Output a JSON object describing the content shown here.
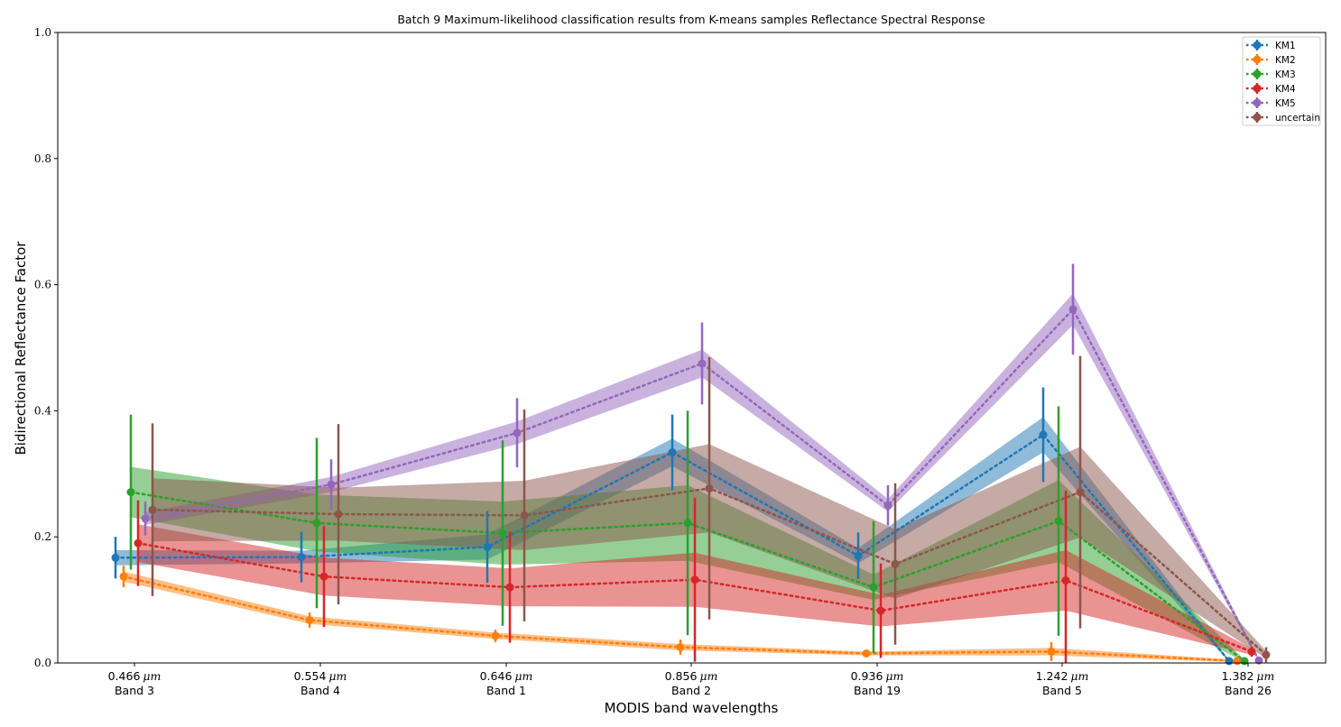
{
  "chart_data": {
    "type": "line",
    "title": "Batch 9 Maximum-likelihood classification results from K-means samples Reflectance Spectral Response",
    "xlabel": "MODIS band wavelengths",
    "ylabel": "Bidirectional Reflectance Factor",
    "ylim": [
      0,
      1.0
    ],
    "yticks": [
      "0.0",
      "0.2",
      "0.4",
      "0.6",
      "0.8",
      "1.0"
    ],
    "categories": [
      {
        "wavelength": "0.466",
        "unit": "μm",
        "band": "Band 3"
      },
      {
        "wavelength": "0.554",
        "unit": "μm",
        "band": "Band 4"
      },
      {
        "wavelength": "0.646",
        "unit": "μm",
        "band": "Band 1"
      },
      {
        "wavelength": "0.856",
        "unit": "μm",
        "band": "Band 2"
      },
      {
        "wavelength": "0.936",
        "unit": "μm",
        "band": "Band 19"
      },
      {
        "wavelength": "1.242",
        "unit": "μm",
        "band": "Band 5"
      },
      {
        "wavelength": "1.382",
        "unit": "μm",
        "band": "Band 26"
      }
    ],
    "grid": false,
    "legend_position": "top-right",
    "series": [
      {
        "name": "KM1",
        "color": "#1f77b4",
        "values": [
          0.167,
          0.168,
          0.184,
          0.334,
          0.17,
          0.362,
          0.003
        ],
        "err": [
          0.033,
          0.04,
          0.057,
          0.06,
          0.037,
          0.075,
          0.002
        ],
        "band_half": [
          0.012,
          0.01,
          0.02,
          0.022,
          0.012,
          0.028,
          0.002
        ]
      },
      {
        "name": "KM2",
        "color": "#ff7f0e",
        "values": [
          0.137,
          0.068,
          0.043,
          0.025,
          0.015,
          0.018,
          0.003
        ],
        "err": [
          0.017,
          0.012,
          0.01,
          0.012,
          0.005,
          0.015,
          0.002
        ],
        "band_half": [
          0.008,
          0.006,
          0.005,
          0.005,
          0.003,
          0.006,
          0.002
        ]
      },
      {
        "name": "KM3",
        "color": "#2ca02c",
        "values": [
          0.271,
          0.222,
          0.206,
          0.222,
          0.12,
          0.225,
          0.003
        ],
        "err": [
          0.123,
          0.135,
          0.147,
          0.178,
          0.105,
          0.182,
          0.002
        ],
        "band_half": [
          0.04,
          0.045,
          0.05,
          0.06,
          0.02,
          0.065,
          0.002
        ]
      },
      {
        "name": "KM4",
        "color": "#d62728",
        "values": [
          0.19,
          0.137,
          0.12,
          0.132,
          0.083,
          0.131,
          0.018
        ],
        "err": [
          0.068,
          0.08,
          0.088,
          0.13,
          0.075,
          0.142,
          0.008
        ],
        "band_half": [
          0.03,
          0.03,
          0.03,
          0.043,
          0.025,
          0.048,
          0.005
        ]
      },
      {
        "name": "KM5",
        "color": "#9467bd",
        "values": [
          0.229,
          0.283,
          0.365,
          0.475,
          0.25,
          0.561,
          0.004
        ],
        "err": [
          0.027,
          0.04,
          0.055,
          0.065,
          0.032,
          0.072,
          0.003
        ],
        "band_half": [
          0.01,
          0.012,
          0.018,
          0.022,
          0.01,
          0.025,
          0.002
        ]
      },
      {
        "name": "uncertain",
        "color": "#8c564b",
        "values": [
          0.243,
          0.236,
          0.234,
          0.277,
          0.157,
          0.271,
          0.013
        ],
        "err": [
          0.137,
          0.143,
          0.168,
          0.208,
          0.128,
          0.216,
          0.012
        ],
        "band_half": [
          0.05,
          0.042,
          0.055,
          0.07,
          0.055,
          0.072,
          0.006
        ]
      }
    ]
  }
}
